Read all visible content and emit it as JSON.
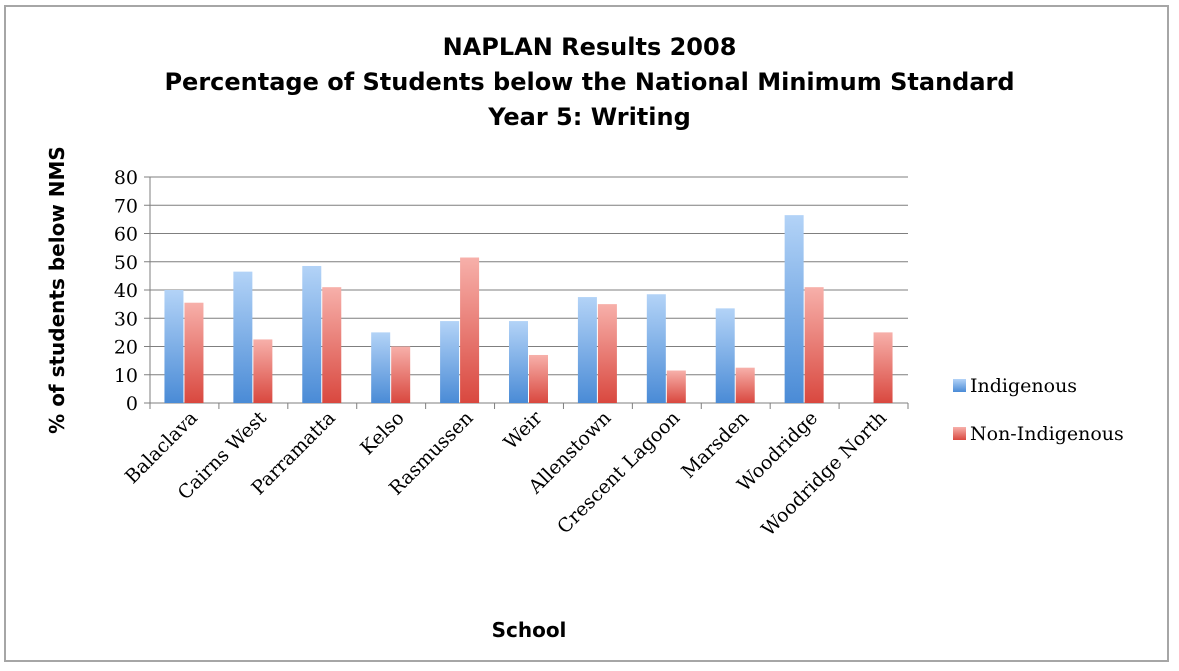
{
  "chart_data": {
    "type": "bar",
    "title": [
      "NAPLAN Results 2008",
      "Percentage of Students below the National Minimum Standard",
      "Year 5: Writing"
    ],
    "xlabel": "School",
    "ylabel": "% of students below NMS",
    "ylim": [
      0,
      80
    ],
    "yticks": [
      "0",
      "10",
      "20",
      "30",
      "40",
      "50",
      "60",
      "70",
      "80"
    ],
    "categories": [
      "Balaclava",
      "Cairns West",
      "Parramatta",
      "Kelso",
      "Rasmussen",
      "Weir",
      "Allenstown",
      "Crescent Lagoon",
      "Marsden",
      "Woodridge",
      "Woodridge North"
    ],
    "series": [
      {
        "name": "Indigenous",
        "color": "#5b9bd5",
        "values": [
          40,
          46.5,
          48.5,
          25,
          29,
          29,
          37.5,
          38.5,
          33.5,
          66.5,
          0
        ]
      },
      {
        "name": "Non-Indigenous",
        "color": "#e0504a",
        "values": [
          35.5,
          22.5,
          41,
          20,
          51.5,
          17,
          35,
          11.5,
          12.5,
          41,
          25
        ]
      }
    ],
    "grid": true,
    "legend_position": "right"
  }
}
